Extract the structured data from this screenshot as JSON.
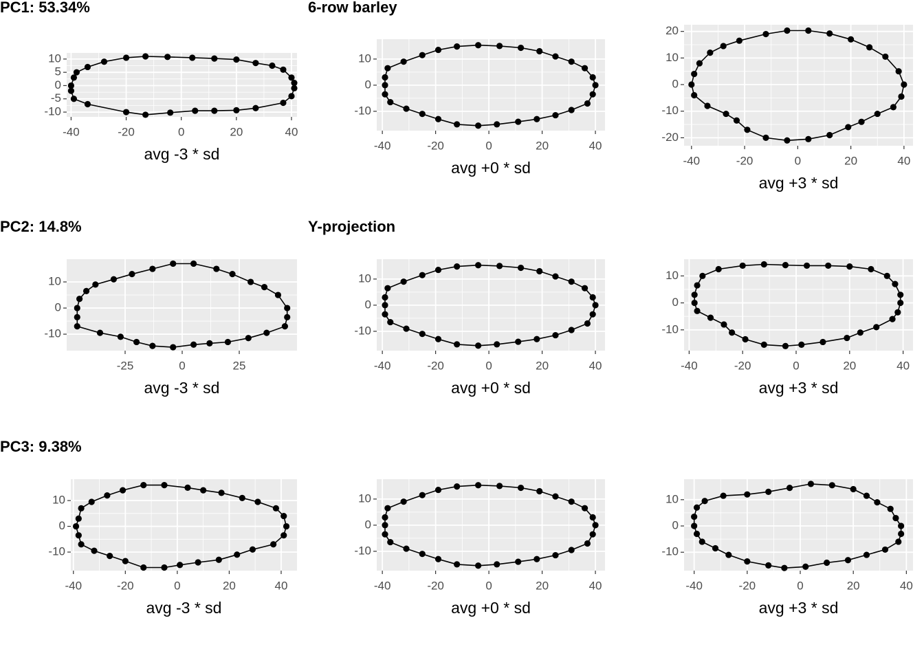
{
  "chart_data": [
    {
      "type": "line",
      "title": "PC1: 53.34%",
      "xlabel": "avg -3 * sd",
      "xlim": [
        -41.6,
        42
      ],
      "ylim": [
        -11.8,
        12.3
      ],
      "xticks": [
        -40,
        -20,
        0,
        20,
        40
      ],
      "yticks": [
        -10,
        -5,
        0,
        5,
        10
      ],
      "grid": true,
      "color": "#000000",
      "x": [
        -39,
        -38,
        -34,
        -28,
        -20,
        -13,
        -5,
        4,
        12,
        20,
        27,
        33,
        37,
        40,
        41,
        41,
        40,
        37,
        27,
        20,
        12,
        5,
        -4,
        -13,
        -20,
        -34,
        -39,
        -40,
        -40
      ],
      "values": [
        3,
        5,
        7,
        9,
        10.5,
        11,
        10.8,
        10.5,
        10.2,
        9.8,
        8.5,
        7.5,
        6,
        3,
        1,
        -1,
        -4,
        -6.5,
        -8.5,
        -9.3,
        -9.5,
        -9.5,
        -10.2,
        -11,
        -10,
        -7,
        -5,
        -2,
        0
      ]
    },
    {
      "type": "line",
      "title": "6-row barley",
      "xlabel": "avg +0 * sd",
      "xlim": [
        -42.1,
        43.6
      ],
      "ylim": [
        -17.4,
        17.6
      ],
      "xticks": [
        -40,
        -20,
        0,
        20,
        40
      ],
      "yticks": [
        -10,
        0,
        10
      ],
      "grid": true,
      "color": "#000000",
      "x": [
        -39,
        -38,
        -32,
        -25,
        -19,
        -12,
        -4,
        4,
        12,
        19,
        25,
        31,
        36,
        39,
        40,
        39,
        37,
        31,
        25,
        18,
        11,
        3,
        -4,
        -12,
        -19,
        -25,
        -31,
        -37,
        -39,
        -39
      ],
      "values": [
        3,
        6.5,
        9,
        11.5,
        13.5,
        14.8,
        15.3,
        15,
        14.3,
        13,
        11,
        9,
        6.5,
        3,
        0,
        -3.5,
        -7,
        -9.5,
        -11.5,
        -13,
        -14,
        -15,
        -15.5,
        -15,
        -13,
        -11,
        -9,
        -6.5,
        -3.5,
        0
      ]
    },
    {
      "type": "line",
      "xlabel": "avg +3 * sd",
      "xlim": [
        -42.8,
        43.4
      ],
      "ylim": [
        -23,
        22.5
      ],
      "xticks": [
        -40,
        -20,
        0,
        20,
        40
      ],
      "yticks": [
        -20,
        -10,
        0,
        10,
        20
      ],
      "grid": true,
      "color": "#000000",
      "x": [
        -39,
        -37,
        -33,
        -28,
        -22,
        -12,
        -4,
        4,
        12,
        20,
        27,
        33,
        38,
        40,
        39,
        36,
        30,
        24,
        19,
        12,
        4,
        -4,
        -12,
        -19,
        -23,
        -27,
        -34,
        -39,
        -40
      ],
      "values": [
        4,
        8,
        12,
        14.5,
        16.5,
        19,
        20.3,
        20.3,
        19.2,
        17,
        14,
        10.5,
        5,
        0,
        -4.5,
        -8.5,
        -11,
        -14,
        -16,
        -19,
        -20.5,
        -21,
        -20,
        -17,
        -13.5,
        -11,
        -8,
        -4,
        0
      ]
    },
    {
      "type": "line",
      "title": "PC2: 14.8%",
      "xlabel": "avg -3 * sd",
      "xlim": [
        -50.6,
        50.3
      ],
      "ylim": [
        -16.3,
        18.7
      ],
      "xticks": [
        -25,
        0,
        25
      ],
      "yticks": [
        -10,
        0,
        10
      ],
      "grid": true,
      "color": "#000000",
      "x": [
        -45,
        -42,
        -38,
        -30,
        -22,
        -13,
        -4,
        5,
        15,
        22,
        30,
        36,
        42,
        46,
        46,
        45,
        37,
        29,
        20,
        12,
        5,
        -4,
        -13,
        -20,
        -27,
        -36,
        -46,
        -46,
        -46
      ],
      "values": [
        3.5,
        6.5,
        9,
        11,
        13,
        15,
        17,
        17,
        15,
        13,
        10,
        8,
        5,
        0,
        -3.5,
        -7,
        -9.5,
        -11.5,
        -13,
        -13.5,
        -14,
        -15,
        -14.5,
        -13,
        -11,
        -9.5,
        -7,
        -3.5,
        0
      ]
    },
    {
      "type": "line",
      "title": "Y-projection",
      "xlabel": "avg +0 * sd",
      "xlim": [
        -42.1,
        43.6
      ],
      "ylim": [
        -17.4,
        17.6
      ],
      "xticks": [
        -40,
        -20,
        0,
        20,
        40
      ],
      "yticks": [
        -10,
        0,
        10
      ],
      "grid": true,
      "color": "#000000",
      "x": [
        -39,
        -38,
        -32,
        -25,
        -19,
        -12,
        -4,
        4,
        12,
        19,
        25,
        31,
        36,
        39,
        40,
        39,
        37,
        31,
        25,
        18,
        11,
        3,
        -4,
        -12,
        -19,
        -25,
        -31,
        -37,
        -39,
        -39
      ],
      "values": [
        3,
        6.5,
        9,
        11.5,
        13.5,
        14.8,
        15.3,
        15,
        14.3,
        13,
        11,
        9,
        6.5,
        3,
        0,
        -3.5,
        -7,
        -9.5,
        -11.5,
        -13,
        -14,
        -15,
        -15.5,
        -15,
        -13,
        -11,
        -9,
        -6.5,
        -3.5,
        0
      ]
    },
    {
      "type": "line",
      "xlabel": "avg +3 * sd",
      "xlim": [
        -41.9,
        43.7
      ],
      "ylim": [
        -17.7,
        16.2
      ],
      "xticks": [
        -40,
        -20,
        0,
        20,
        40
      ],
      "yticks": [
        -10,
        0,
        10
      ],
      "grid": true,
      "color": "#000000",
      "x": [
        -38,
        -37,
        -35,
        -29,
        -20,
        -12,
        -4,
        4,
        12,
        20,
        28,
        34,
        37,
        39,
        39,
        38,
        36,
        30,
        24,
        19,
        10,
        2,
        -4,
        -12,
        -19,
        -24,
        -27,
        -32,
        -37,
        -38
      ],
      "values": [
        3,
        6.5,
        10,
        12.5,
        13.8,
        14.3,
        14,
        13.8,
        13.8,
        13.5,
        12.5,
        10,
        7,
        3,
        0,
        -3.5,
        -6,
        -9,
        -11,
        -13,
        -14.5,
        -15.5,
        -16,
        -15.5,
        -13.5,
        -11,
        -8,
        -5.5,
        -3,
        0
      ]
    },
    {
      "type": "line",
      "title": "PC3: 9.38%",
      "xlabel": "avg -3 * sd",
      "xlim": [
        -41,
        46.1
      ],
      "ylim": [
        -17.2,
        18.3
      ],
      "xticks": [
        -40,
        -20,
        0,
        20,
        40
      ],
      "yticks": [
        -10,
        0,
        10
      ],
      "grid": true,
      "color": "#000000",
      "x": [
        -38,
        -37,
        -33,
        -27,
        -21,
        -13,
        -5,
        4,
        10,
        17,
        25,
        31,
        38,
        41,
        42,
        41,
        37,
        29,
        23,
        16,
        8,
        1,
        -5,
        -13,
        -20,
        -26,
        -32,
        -37,
        -38,
        -39
      ],
      "values": [
        3,
        7,
        9.5,
        12,
        14,
        16,
        16,
        15,
        14,
        13,
        11,
        9.5,
        7,
        4,
        0,
        -3.5,
        -7,
        -9,
        -11,
        -13,
        -14,
        -15,
        -16,
        -16,
        -13.5,
        -11.5,
        -9.5,
        -7,
        -3.5,
        0
      ]
    },
    {
      "type": "line",
      "xlabel": "avg +0 * sd",
      "xlim": [
        -42.1,
        43.6
      ],
      "ylim": [
        -17.4,
        17.6
      ],
      "xticks": [
        -40,
        -20,
        0,
        20,
        40
      ],
      "yticks": [
        -10,
        0,
        10
      ],
      "grid": true,
      "color": "#000000",
      "x": [
        -39,
        -38,
        -32,
        -25,
        -19,
        -12,
        -4,
        4,
        12,
        19,
        25,
        31,
        36,
        39,
        40,
        39,
        37,
        31,
        25,
        18,
        11,
        3,
        -4,
        -12,
        -19,
        -25,
        -31,
        -37,
        -39,
        -39
      ],
      "values": [
        3,
        6.5,
        9,
        11.5,
        13.5,
        14.8,
        15.3,
        15,
        14.3,
        13,
        11,
        9,
        6.5,
        3,
        0,
        -3.5,
        -7,
        -9.5,
        -11.5,
        -13,
        -14,
        -15,
        -15.5,
        -15,
        -13,
        -11,
        -9,
        -6.5,
        -3.5,
        0
      ]
    },
    {
      "type": "line",
      "xlabel": "avg +3 * sd",
      "xlim": [
        -43.8,
        42.5
      ],
      "ylim": [
        -17,
        17.8
      ],
      "xticks": [
        -40,
        -20,
        0,
        20,
        40
      ],
      "yticks": [
        -10,
        0,
        10
      ],
      "grid": true,
      "color": "#000000",
      "x": [
        -40,
        -39,
        -36,
        -29,
        -20,
        -12,
        -4,
        4,
        12,
        20,
        25,
        29,
        34,
        36,
        38,
        38,
        37,
        32,
        25,
        18,
        10,
        2,
        -6,
        -12,
        -20,
        -27,
        -32,
        -37,
        -39,
        -40
      ],
      "values": [
        3.5,
        7,
        9.5,
        11.5,
        12,
        13,
        14.5,
        16,
        15.5,
        14,
        11.5,
        9,
        6.5,
        3,
        0,
        -3,
        -6,
        -9,
        -11,
        -13,
        -14,
        -15.5,
        -16,
        -15,
        -13.5,
        -11,
        -8.5,
        -6,
        -3,
        0
      ]
    }
  ]
}
